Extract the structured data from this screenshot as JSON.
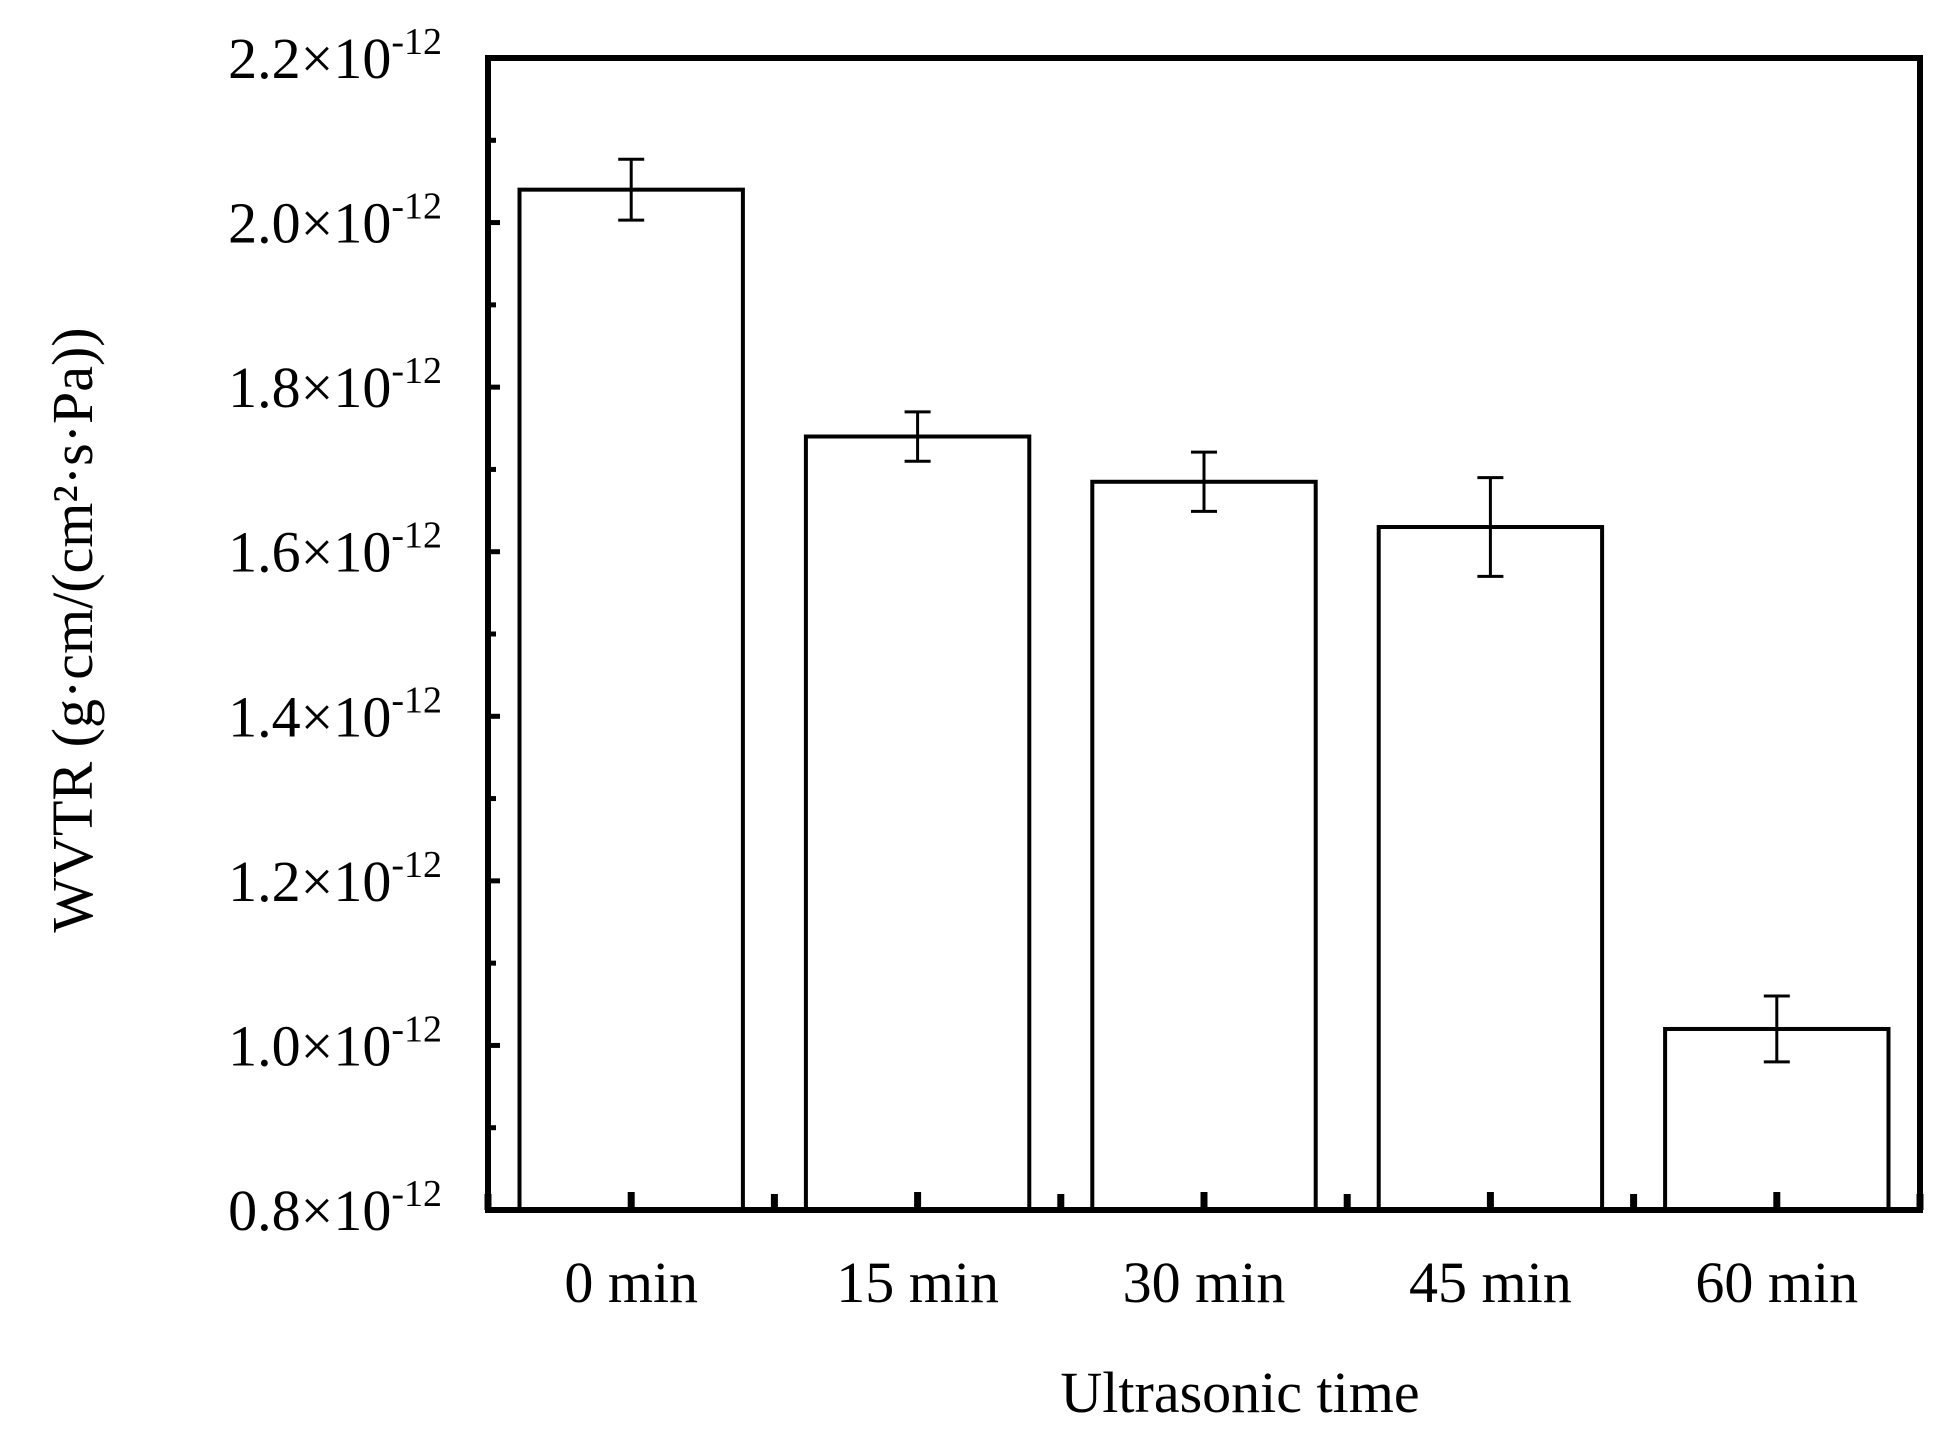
{
  "chart_data": {
    "type": "bar",
    "categories": [
      "0 min",
      "15 min",
      "30 min",
      "45 min",
      "60 min"
    ],
    "series": [
      {
        "values": [
          2.04e-12,
          1.74e-12,
          1.685e-12,
          1.63e-12,
          1.02e-12
        ],
        "errors": [
          3.7e-14,
          3e-14,
          3.6e-14,
          6e-14,
          4e-14
        ]
      }
    ],
    "xlabel": "Ultrasonic time",
    "ylabel": "WVTR (g·cm/(cm²·s·Pa))",
    "ylim": [
      8e-13,
      2.2e-12
    ],
    "yticks": [
      8e-13,
      1e-12,
      1.2e-12,
      1.4e-12,
      1.6e-12,
      1.8e-12,
      2e-12,
      2.2e-12
    ],
    "ytick_labels": [
      {
        "mantissa": "0.8",
        "exponent": "-12"
      },
      {
        "mantissa": "1.0",
        "exponent": "-12"
      },
      {
        "mantissa": "1.2",
        "exponent": "-12"
      },
      {
        "mantissa": "1.4",
        "exponent": "-12"
      },
      {
        "mantissa": "1.6",
        "exponent": "-12"
      },
      {
        "mantissa": "1.8",
        "exponent": "-12"
      },
      {
        "mantissa": "2.0",
        "exponent": "-12"
      },
      {
        "mantissa": "2.2",
        "exponent": "-12"
      }
    ],
    "bar_fill": "#ffffff",
    "bar_stroke": "#000000",
    "grid": false,
    "legend": "none"
  }
}
